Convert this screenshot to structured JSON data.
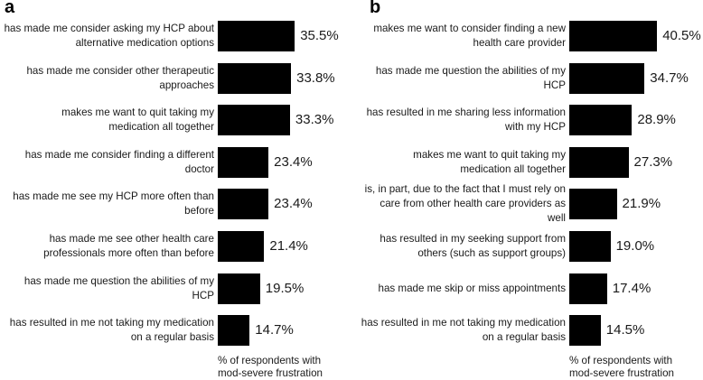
{
  "chart_data": [
    {
      "type": "bar",
      "orientation": "horizontal",
      "panel_label": "a",
      "categories": [
        [
          "has made me consider asking my HCP about",
          "alternative medication options"
        ],
        [
          "has made me consider other therapeutic",
          "approaches"
        ],
        [
          "makes me want to quit taking my",
          "medication all together"
        ],
        [
          "has made me consider finding a different",
          "doctor"
        ],
        [
          "has made me see my HCP more often than",
          "before"
        ],
        [
          "has made me see other health care",
          "professionals more often than before"
        ],
        [
          "has made me question the abilities of my",
          "HCP"
        ],
        [
          "has resulted in me not taking my medication",
          "on a regular basis"
        ]
      ],
      "values": [
        35.5,
        33.8,
        33.3,
        23.4,
        23.4,
        21.4,
        19.5,
        14.7
      ],
      "value_labels": [
        "35.5%",
        "33.8%",
        "33.3%",
        "23.4%",
        "23.4%",
        "21.4%",
        "19.5%",
        "14.7%"
      ],
      "xlabel": [
        "% of respondents with",
        "mod-severe frustration"
      ],
      "color": "#000000"
    },
    {
      "type": "bar",
      "orientation": "horizontal",
      "panel_label": "b",
      "categories": [
        [
          "makes me want to consider finding a new",
          "health care provider"
        ],
        [
          "has made me question the abilities of my",
          "HCP"
        ],
        [
          "has resulted in me sharing less information",
          "with my HCP"
        ],
        [
          "makes me want to quit taking my",
          "medication all together"
        ],
        [
          "is, in part, due to the fact that I must rely on",
          "care from other health care providers as",
          "well"
        ],
        [
          "has resulted in my seeking support from",
          "others (such as support groups)"
        ],
        [
          "has made me skip or miss appointments"
        ],
        [
          "has resulted in me not taking my medication",
          "on a regular basis"
        ]
      ],
      "values": [
        40.5,
        34.7,
        28.9,
        27.3,
        21.9,
        19.0,
        17.4,
        14.5
      ],
      "value_labels": [
        "40.5%",
        "34.7%",
        "28.9%",
        "27.3%",
        "21.9%",
        "19.0%",
        "17.4%",
        "14.5%"
      ],
      "xlabel": [
        "% of respondents with",
        "mod-severe frustration"
      ],
      "color": "#000000"
    }
  ]
}
